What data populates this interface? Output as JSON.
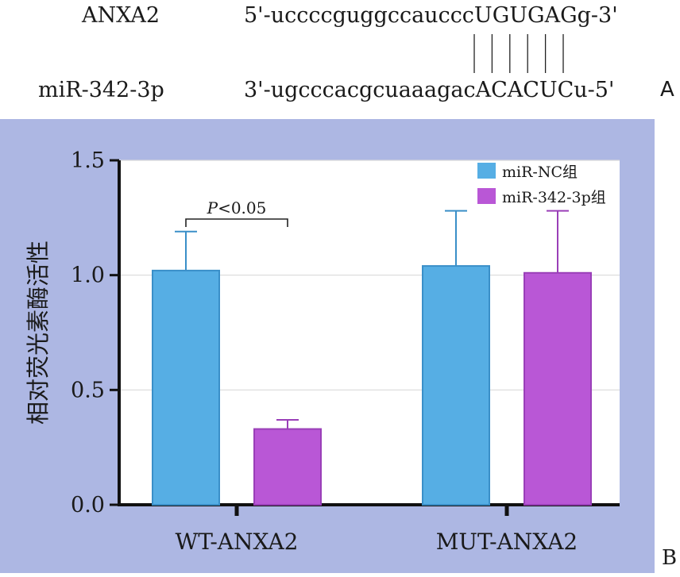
{
  "panel_a": {
    "rows": [
      {
        "name": "ANXA2",
        "sequence": "5'-uccccguggccaucccUGUGAGg-3'"
      },
      {
        "name": "miR-342-3p",
        "sequence": "3'-ugcccacgcuaaagacACACUCu-5'"
      }
    ],
    "pair_count": 6,
    "label": "A"
  },
  "panel_b": {
    "label": "B"
  },
  "colors": {
    "panel_bg": "#adb7e3",
    "plot_bg": "#ffffff",
    "series_nc": "#56aee4",
    "series_342": "#b957d6",
    "axis": "#111111",
    "grid": "#d9d9d9"
  },
  "chart_data": {
    "type": "bar",
    "ylabel": "相对荧光素酶活性",
    "xlabel": "",
    "ylim": [
      0,
      1.5
    ],
    "yticks": [
      "0.0",
      "0.5",
      "1.0",
      "1.5"
    ],
    "categories": [
      "WT-ANXA2",
      "MUT-ANXA2"
    ],
    "series": [
      {
        "name": "miR-NC组",
        "values": [
          1.02,
          1.04
        ],
        "error": [
          0.17,
          0.24
        ]
      },
      {
        "name": "miR-342-3p组",
        "values": [
          0.33,
          1.01
        ],
        "error": [
          0.04,
          0.27
        ]
      }
    ],
    "grid": true,
    "legend": "top-right",
    "annotations": [
      {
        "text": "P<0.05",
        "category": "WT-ANXA2"
      }
    ]
  }
}
